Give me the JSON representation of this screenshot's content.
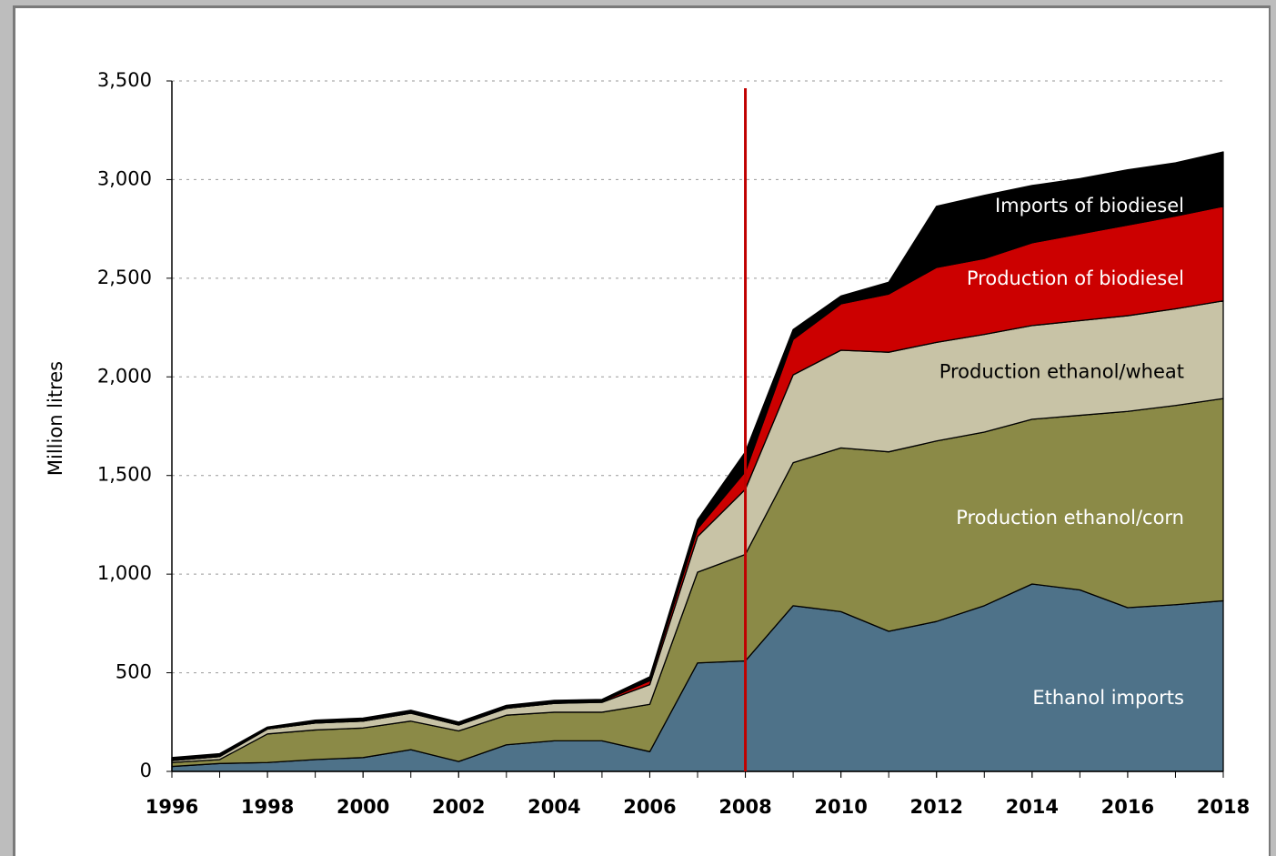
{
  "chart_data": {
    "type": "stacked-area",
    "y_label": "Million litres",
    "x": [
      1996,
      1997,
      1998,
      1999,
      2000,
      2001,
      2002,
      2003,
      2004,
      2005,
      2006,
      2007,
      2008,
      2009,
      2010,
      2011,
      2012,
      2013,
      2014,
      2015,
      2016,
      2017,
      2018
    ],
    "series": [
      {
        "name": "Ethanol imports",
        "color": "#4e7289",
        "label_color": "#ffffff",
        "values": [
          25,
          40,
          45,
          60,
          70,
          110,
          50,
          135,
          155,
          155,
          100,
          550,
          560,
          840,
          810,
          710,
          760,
          840,
          950,
          920,
          830,
          845,
          865
        ]
      },
      {
        "name": "Production ethanol/corn",
        "color": "#8b8a47",
        "label_color": "#ffffff",
        "values": [
          20,
          20,
          145,
          150,
          150,
          145,
          155,
          150,
          145,
          145,
          240,
          460,
          540,
          725,
          830,
          910,
          915,
          880,
          835,
          885,
          995,
          1010,
          1025
        ]
      },
      {
        "name": "Production ethanol/wheat",
        "color": "#c8c3a6",
        "label_color": "#000000",
        "values": [
          10,
          15,
          25,
          35,
          35,
          40,
          30,
          35,
          45,
          50,
          100,
          180,
          330,
          445,
          495,
          505,
          500,
          495,
          475,
          480,
          485,
          490,
          495
        ]
      },
      {
        "name": "Production of biodiesel",
        "color": "#cc0000",
        "label_color": "#ffffff",
        "values": [
          0,
          0,
          0,
          0,
          0,
          0,
          0,
          0,
          0,
          5,
          20,
          40,
          90,
          180,
          235,
          295,
          380,
          385,
          420,
          440,
          460,
          470,
          480
        ]
      },
      {
        "name": "Imports of biodiesel",
        "color": "#000000",
        "label_color": "#ffffff",
        "values": [
          15,
          15,
          10,
          15,
          15,
          15,
          15,
          15,
          15,
          10,
          20,
          45,
          100,
          50,
          40,
          60,
          310,
          320,
          290,
          280,
          280,
          270,
          275
        ]
      }
    ],
    "xlim": [
      1996,
      2018
    ],
    "xticks": [
      1996,
      1998,
      2000,
      2002,
      2004,
      2006,
      2008,
      2010,
      2012,
      2014,
      2016,
      2018
    ],
    "ylim": [
      0,
      3500
    ],
    "yticks": [
      0,
      500,
      {
        "value": 1000,
        "label": "1,000"
      },
      {
        "value": 1500,
        "label": "1,500"
      },
      {
        "value": 2000,
        "label": "2,000"
      },
      {
        "value": 2500,
        "label": "2,500"
      },
      {
        "value": 3000,
        "label": "3,000"
      },
      {
        "value": 3500,
        "label": "3,500"
      }
    ],
    "grid": true,
    "vline": {
      "x": 2008,
      "color": "#c00000"
    }
  }
}
